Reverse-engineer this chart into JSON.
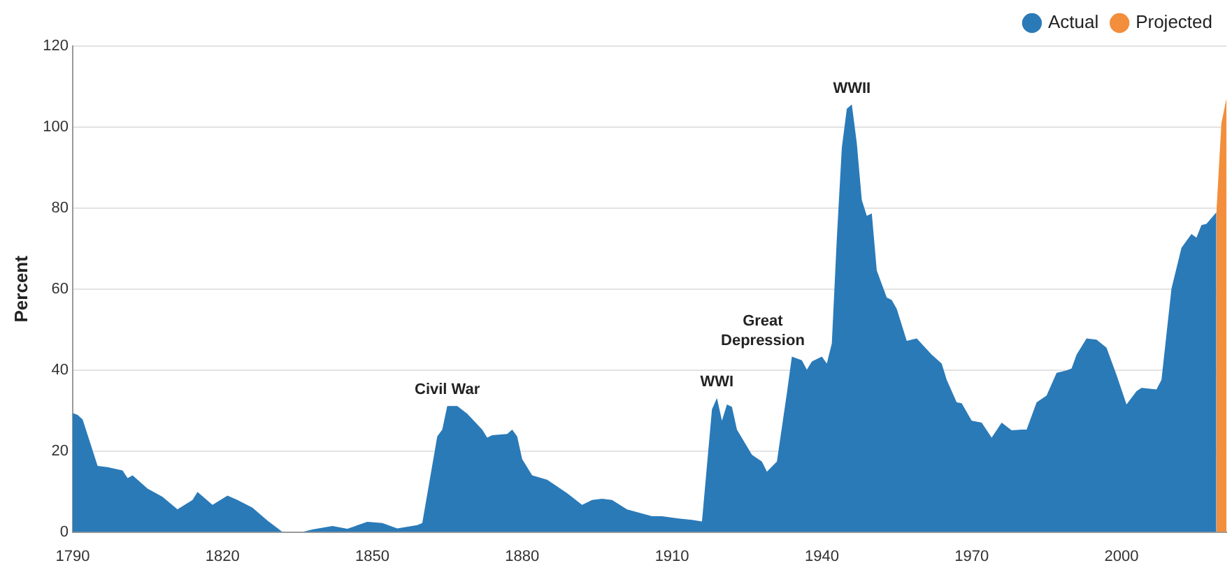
{
  "chart_data": {
    "type": "area",
    "ylabel": "Percent",
    "xlim": [
      1790,
      2021
    ],
    "xticks": [
      1790,
      1820,
      1850,
      1880,
      1910,
      1940,
      1970,
      2000
    ],
    "ylim": [
      0,
      120
    ],
    "yticks": [
      0,
      20,
      40,
      60,
      80,
      100,
      120
    ],
    "grid": "y",
    "legend": "top right",
    "marker": "none",
    "series": [
      {
        "name": "Actual",
        "color": "#2a7ab8",
        "x": [
          1790,
          1791,
          1792,
          1795,
          1797,
          1800,
          1801,
          1802,
          1805,
          1808,
          1811,
          1814,
          1815,
          1818,
          1821,
          1823,
          1826,
          1829,
          1832,
          1836,
          1838,
          1842,
          1845,
          1849,
          1852,
          1855,
          1859,
          1860,
          1863,
          1864,
          1865,
          1867,
          1869,
          1872,
          1873,
          1874,
          1877,
          1878,
          1879,
          1880,
          1882,
          1885,
          1889,
          1892,
          1894,
          1896,
          1898,
          1901,
          1906,
          1908,
          1911,
          1914,
          1916,
          1918,
          1919,
          1920,
          1921,
          1922,
          1923,
          1926,
          1928,
          1929,
          1931,
          1933,
          1934,
          1936,
          1937,
          1938,
          1940,
          1941,
          1942,
          1943,
          1944,
          1945,
          1946,
          1947,
          1948,
          1949,
          1950,
          1951,
          1953,
          1954,
          1955,
          1957,
          1959,
          1962,
          1964,
          1965,
          1967,
          1968,
          1970,
          1972,
          1974,
          1976,
          1978,
          1980,
          1981,
          1983,
          1985,
          1987,
          1989,
          1990,
          1991,
          1993,
          1995,
          1997,
          1999,
          2001,
          2003,
          2004,
          2007,
          2008,
          2010,
          2012,
          2014,
          2015,
          2016,
          2017,
          2019
        ],
        "values": [
          29.4,
          28.9,
          27.8,
          16.3,
          16,
          15.2,
          13.3,
          14,
          10.7,
          8.7,
          5.6,
          7.9,
          9.9,
          6.7,
          9,
          7.9,
          6,
          2.8,
          0,
          0,
          0.6,
          1.5,
          0.8,
          2.5,
          2.2,
          0.9,
          1.7,
          2.2,
          23.6,
          25.3,
          31.1,
          31.1,
          29.2,
          25.3,
          23.3,
          23.9,
          24.2,
          25.3,
          23.6,
          18,
          14,
          12.9,
          9.6,
          6.7,
          7.9,
          8.2,
          7.9,
          5.6,
          3.9,
          3.9,
          3.4,
          3,
          2.6,
          30.3,
          33.1,
          27.5,
          31.5,
          30.9,
          25.3,
          19.1,
          17.4,
          14.9,
          17.4,
          34.3,
          43.3,
          42.4,
          40.1,
          42.1,
          43.3,
          41.6,
          46.6,
          72.5,
          94.9,
          104.5,
          105.6,
          96,
          82,
          78.1,
          78.7,
          64.6,
          57.9,
          57.3,
          55.1,
          47.2,
          47.8,
          43.8,
          41.6,
          37.6,
          32,
          31.8,
          27.5,
          27,
          23.3,
          27,
          25.1,
          25.3,
          25.3,
          32,
          33.7,
          39.3,
          39.9,
          40.4,
          43.8,
          47.8,
          47.5,
          45.5,
          38.8,
          31.5,
          34.8,
          35.6,
          35.2,
          37.6,
          60.1,
          70.2,
          73.6,
          72.7,
          75.8,
          76.1,
          79
        ]
      },
      {
        "name": "Projected",
        "color": "#f28e3c",
        "x": [
          2019,
          2020,
          2021
        ],
        "values": [
          79,
          101,
          107
        ]
      }
    ],
    "annotations": [
      {
        "text": "Civil War",
        "x": 1865,
        "y": 31.1
      },
      {
        "text": "WWI",
        "x": 1919,
        "y": 33.1
      },
      {
        "text": "Great Depression",
        "x": 1936,
        "y": 42.4
      },
      {
        "text": "WWII",
        "x": 1946,
        "y": 105.6
      }
    ]
  }
}
